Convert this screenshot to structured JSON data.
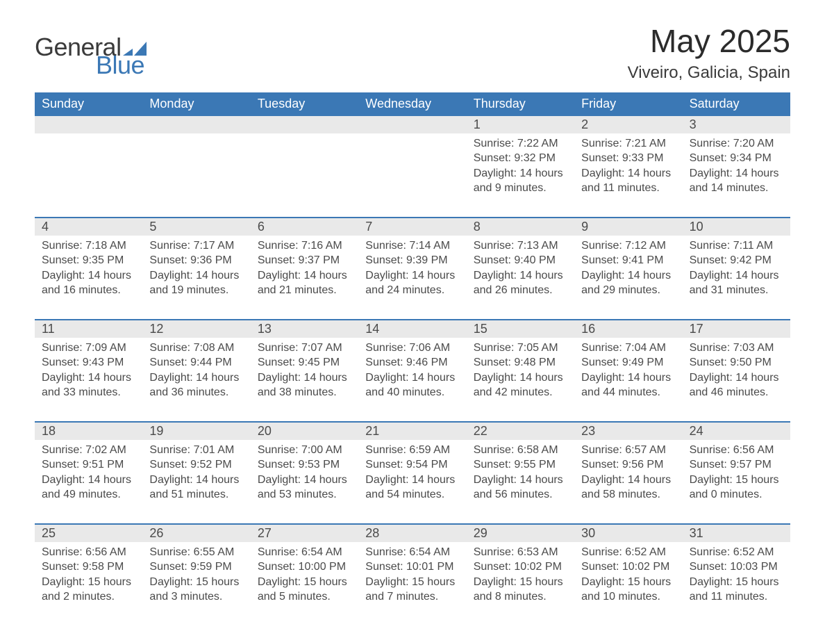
{
  "brand": {
    "line1": "General",
    "line2": "Blue",
    "mark_color": "#3b78b5"
  },
  "title": {
    "month": "May 2025",
    "location": "Viveiro, Galicia, Spain"
  },
  "colors": {
    "accent": "#3b78b5",
    "header_text": "#ffffff",
    "daynum_bg": "#e9e9e9",
    "body_text": "#3a3a3a",
    "background": "#ffffff"
  },
  "typography": {
    "month_title_fontsize": 46,
    "location_fontsize": 24,
    "header_fontsize": 18,
    "daynum_fontsize": 18,
    "details_fontsize": 16
  },
  "calendar": {
    "day_headers": [
      "Sunday",
      "Monday",
      "Tuesday",
      "Wednesday",
      "Thursday",
      "Friday",
      "Saturday"
    ],
    "labels": {
      "sunrise": "Sunrise",
      "sunset": "Sunset",
      "daylight": "Daylight"
    },
    "weeks": [
      {
        "days": [
          null,
          null,
          null,
          null,
          {
            "n": "1",
            "sunrise": "7:22 AM",
            "sunset": "9:32 PM",
            "daylight": "14 hours and 9 minutes."
          },
          {
            "n": "2",
            "sunrise": "7:21 AM",
            "sunset": "9:33 PM",
            "daylight": "14 hours and 11 minutes."
          },
          {
            "n": "3",
            "sunrise": "7:20 AM",
            "sunset": "9:34 PM",
            "daylight": "14 hours and 14 minutes."
          }
        ]
      },
      {
        "days": [
          {
            "n": "4",
            "sunrise": "7:18 AM",
            "sunset": "9:35 PM",
            "daylight": "14 hours and 16 minutes."
          },
          {
            "n": "5",
            "sunrise": "7:17 AM",
            "sunset": "9:36 PM",
            "daylight": "14 hours and 19 minutes."
          },
          {
            "n": "6",
            "sunrise": "7:16 AM",
            "sunset": "9:37 PM",
            "daylight": "14 hours and 21 minutes."
          },
          {
            "n": "7",
            "sunrise": "7:14 AM",
            "sunset": "9:39 PM",
            "daylight": "14 hours and 24 minutes."
          },
          {
            "n": "8",
            "sunrise": "7:13 AM",
            "sunset": "9:40 PM",
            "daylight": "14 hours and 26 minutes."
          },
          {
            "n": "9",
            "sunrise": "7:12 AM",
            "sunset": "9:41 PM",
            "daylight": "14 hours and 29 minutes."
          },
          {
            "n": "10",
            "sunrise": "7:11 AM",
            "sunset": "9:42 PM",
            "daylight": "14 hours and 31 minutes."
          }
        ]
      },
      {
        "days": [
          {
            "n": "11",
            "sunrise": "7:09 AM",
            "sunset": "9:43 PM",
            "daylight": "14 hours and 33 minutes."
          },
          {
            "n": "12",
            "sunrise": "7:08 AM",
            "sunset": "9:44 PM",
            "daylight": "14 hours and 36 minutes."
          },
          {
            "n": "13",
            "sunrise": "7:07 AM",
            "sunset": "9:45 PM",
            "daylight": "14 hours and 38 minutes."
          },
          {
            "n": "14",
            "sunrise": "7:06 AM",
            "sunset": "9:46 PM",
            "daylight": "14 hours and 40 minutes."
          },
          {
            "n": "15",
            "sunrise": "7:05 AM",
            "sunset": "9:48 PM",
            "daylight": "14 hours and 42 minutes."
          },
          {
            "n": "16",
            "sunrise": "7:04 AM",
            "sunset": "9:49 PM",
            "daylight": "14 hours and 44 minutes."
          },
          {
            "n": "17",
            "sunrise": "7:03 AM",
            "sunset": "9:50 PM",
            "daylight": "14 hours and 46 minutes."
          }
        ]
      },
      {
        "days": [
          {
            "n": "18",
            "sunrise": "7:02 AM",
            "sunset": "9:51 PM",
            "daylight": "14 hours and 49 minutes."
          },
          {
            "n": "19",
            "sunrise": "7:01 AM",
            "sunset": "9:52 PM",
            "daylight": "14 hours and 51 minutes."
          },
          {
            "n": "20",
            "sunrise": "7:00 AM",
            "sunset": "9:53 PM",
            "daylight": "14 hours and 53 minutes."
          },
          {
            "n": "21",
            "sunrise": "6:59 AM",
            "sunset": "9:54 PM",
            "daylight": "14 hours and 54 minutes."
          },
          {
            "n": "22",
            "sunrise": "6:58 AM",
            "sunset": "9:55 PM",
            "daylight": "14 hours and 56 minutes."
          },
          {
            "n": "23",
            "sunrise": "6:57 AM",
            "sunset": "9:56 PM",
            "daylight": "14 hours and 58 minutes."
          },
          {
            "n": "24",
            "sunrise": "6:56 AM",
            "sunset": "9:57 PM",
            "daylight": "15 hours and 0 minutes."
          }
        ]
      },
      {
        "days": [
          {
            "n": "25",
            "sunrise": "6:56 AM",
            "sunset": "9:58 PM",
            "daylight": "15 hours and 2 minutes."
          },
          {
            "n": "26",
            "sunrise": "6:55 AM",
            "sunset": "9:59 PM",
            "daylight": "15 hours and 3 minutes."
          },
          {
            "n": "27",
            "sunrise": "6:54 AM",
            "sunset": "10:00 PM",
            "daylight": "15 hours and 5 minutes."
          },
          {
            "n": "28",
            "sunrise": "6:54 AM",
            "sunset": "10:01 PM",
            "daylight": "15 hours and 7 minutes."
          },
          {
            "n": "29",
            "sunrise": "6:53 AM",
            "sunset": "10:02 PM",
            "daylight": "15 hours and 8 minutes."
          },
          {
            "n": "30",
            "sunrise": "6:52 AM",
            "sunset": "10:02 PM",
            "daylight": "15 hours and 10 minutes."
          },
          {
            "n": "31",
            "sunrise": "6:52 AM",
            "sunset": "10:03 PM",
            "daylight": "15 hours and 11 minutes."
          }
        ]
      }
    ]
  }
}
